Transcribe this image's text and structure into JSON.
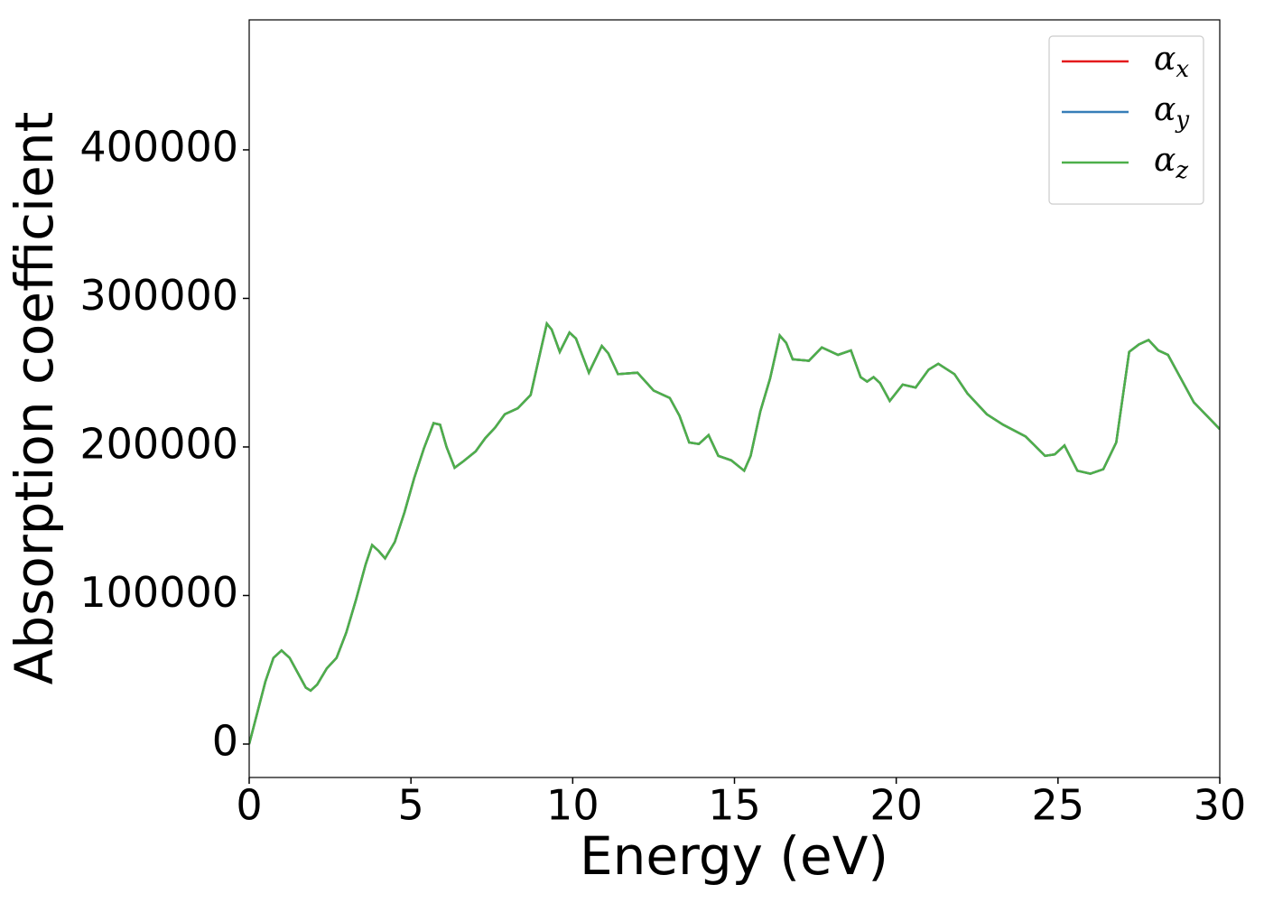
{
  "chart_data": {
    "type": "line",
    "x_label": "Energy (eV)",
    "y_label": "Absorption coefficient",
    "x": [
      0,
      0.25,
      0.5,
      0.75,
      1.0,
      1.25,
      1.5,
      1.75,
      1.9,
      2.1,
      2.4,
      2.7,
      3.0,
      3.3,
      3.6,
      3.8,
      4.0,
      4.2,
      4.5,
      4.8,
      5.1,
      5.4,
      5.7,
      5.9,
      6.1,
      6.35,
      6.6,
      7.0,
      7.3,
      7.6,
      7.9,
      8.3,
      8.7,
      9.0,
      9.2,
      9.35,
      9.6,
      9.9,
      10.1,
      10.5,
      10.9,
      11.1,
      11.4,
      12.0,
      12.5,
      13.0,
      13.3,
      13.6,
      13.9,
      14.2,
      14.5,
      14.9,
      15.3,
      15.5,
      15.8,
      16.1,
      16.4,
      16.6,
      16.8,
      17.3,
      17.7,
      18.2,
      18.6,
      18.9,
      19.1,
      19.3,
      19.5,
      19.8,
      20.2,
      20.6,
      21.0,
      21.3,
      21.8,
      22.2,
      22.8,
      23.3,
      24.0,
      24.6,
      24.9,
      25.2,
      25.6,
      26.0,
      26.4,
      26.8,
      27.2,
      27.5,
      27.8,
      28.1,
      28.4,
      28.8,
      29.2,
      29.6,
      30.0
    ],
    "series": [
      {
        "name": "α_x",
        "color": "#e41a1c",
        "values": [
          0,
          21000,
          42000,
          58000,
          63000,
          58000,
          48000,
          38000,
          36000,
          40000,
          51000,
          58000,
          75000,
          97000,
          121000,
          134000,
          130000,
          125000,
          136000,
          156000,
          179000,
          199000,
          216000,
          215000,
          200000,
          186000,
          190000,
          197000,
          206000,
          213000,
          222000,
          226000,
          235000,
          264000,
          283000,
          279000,
          264000,
          277000,
          273000,
          250000,
          268000,
          263000,
          249000,
          250000,
          238000,
          233000,
          221000,
          203000,
          202000,
          208000,
          194000,
          191000,
          184000,
          194000,
          224000,
          246000,
          275000,
          270000,
          259000,
          258000,
          267000,
          262000,
          265000,
          247000,
          244000,
          247000,
          243000,
          231000,
          242000,
          240000,
          252000,
          256000,
          249000,
          236000,
          222000,
          215000,
          207000,
          194000,
          195000,
          201000,
          184000,
          182000,
          185000,
          203000,
          264000,
          269000,
          272000,
          265000,
          262000,
          246000,
          230000,
          221000,
          212000
        ]
      },
      {
        "name": "α_y",
        "color": "#377eb8",
        "values": [
          0,
          21000,
          42000,
          58000,
          63000,
          58000,
          48000,
          38000,
          36000,
          40000,
          51000,
          58000,
          75000,
          97000,
          121000,
          134000,
          130000,
          125000,
          136000,
          156000,
          179000,
          199000,
          216000,
          215000,
          200000,
          186000,
          190000,
          197000,
          206000,
          213000,
          222000,
          226000,
          235000,
          264000,
          283000,
          279000,
          264000,
          277000,
          273000,
          250000,
          268000,
          263000,
          249000,
          250000,
          238000,
          233000,
          221000,
          203000,
          202000,
          208000,
          194000,
          191000,
          184000,
          194000,
          224000,
          246000,
          275000,
          270000,
          259000,
          258000,
          267000,
          262000,
          265000,
          247000,
          244000,
          247000,
          243000,
          231000,
          242000,
          240000,
          252000,
          256000,
          249000,
          236000,
          222000,
          215000,
          207000,
          194000,
          195000,
          201000,
          184000,
          182000,
          185000,
          203000,
          264000,
          269000,
          272000,
          265000,
          262000,
          246000,
          230000,
          221000,
          212000
        ]
      },
      {
        "name": "α_z",
        "color": "#4daf4a",
        "values": [
          0,
          21000,
          42000,
          58000,
          63000,
          58000,
          48000,
          38000,
          36000,
          40000,
          51000,
          58000,
          75000,
          97000,
          121000,
          134000,
          130000,
          125000,
          136000,
          156000,
          179000,
          199000,
          216000,
          215000,
          200000,
          186000,
          190000,
          197000,
          206000,
          213000,
          222000,
          226000,
          235000,
          264000,
          283000,
          279000,
          264000,
          277000,
          273000,
          250000,
          268000,
          263000,
          249000,
          250000,
          238000,
          233000,
          221000,
          203000,
          202000,
          208000,
          194000,
          191000,
          184000,
          194000,
          224000,
          246000,
          275000,
          270000,
          259000,
          258000,
          267000,
          262000,
          265000,
          247000,
          244000,
          247000,
          243000,
          231000,
          242000,
          240000,
          252000,
          256000,
          249000,
          236000,
          222000,
          215000,
          207000,
          194000,
          195000,
          201000,
          184000,
          182000,
          185000,
          203000,
          264000,
          269000,
          272000,
          265000,
          262000,
          246000,
          230000,
          221000,
          212000
        ]
      }
    ],
    "xlim": [
      0,
      30
    ],
    "xticks": [
      0,
      5,
      10,
      15,
      20,
      25,
      30
    ],
    "ylim": [
      -22500,
      487500
    ],
    "yticks": [
      0,
      100000,
      200000,
      300000,
      400000
    ],
    "legend": "upper right",
    "grid": false
  }
}
